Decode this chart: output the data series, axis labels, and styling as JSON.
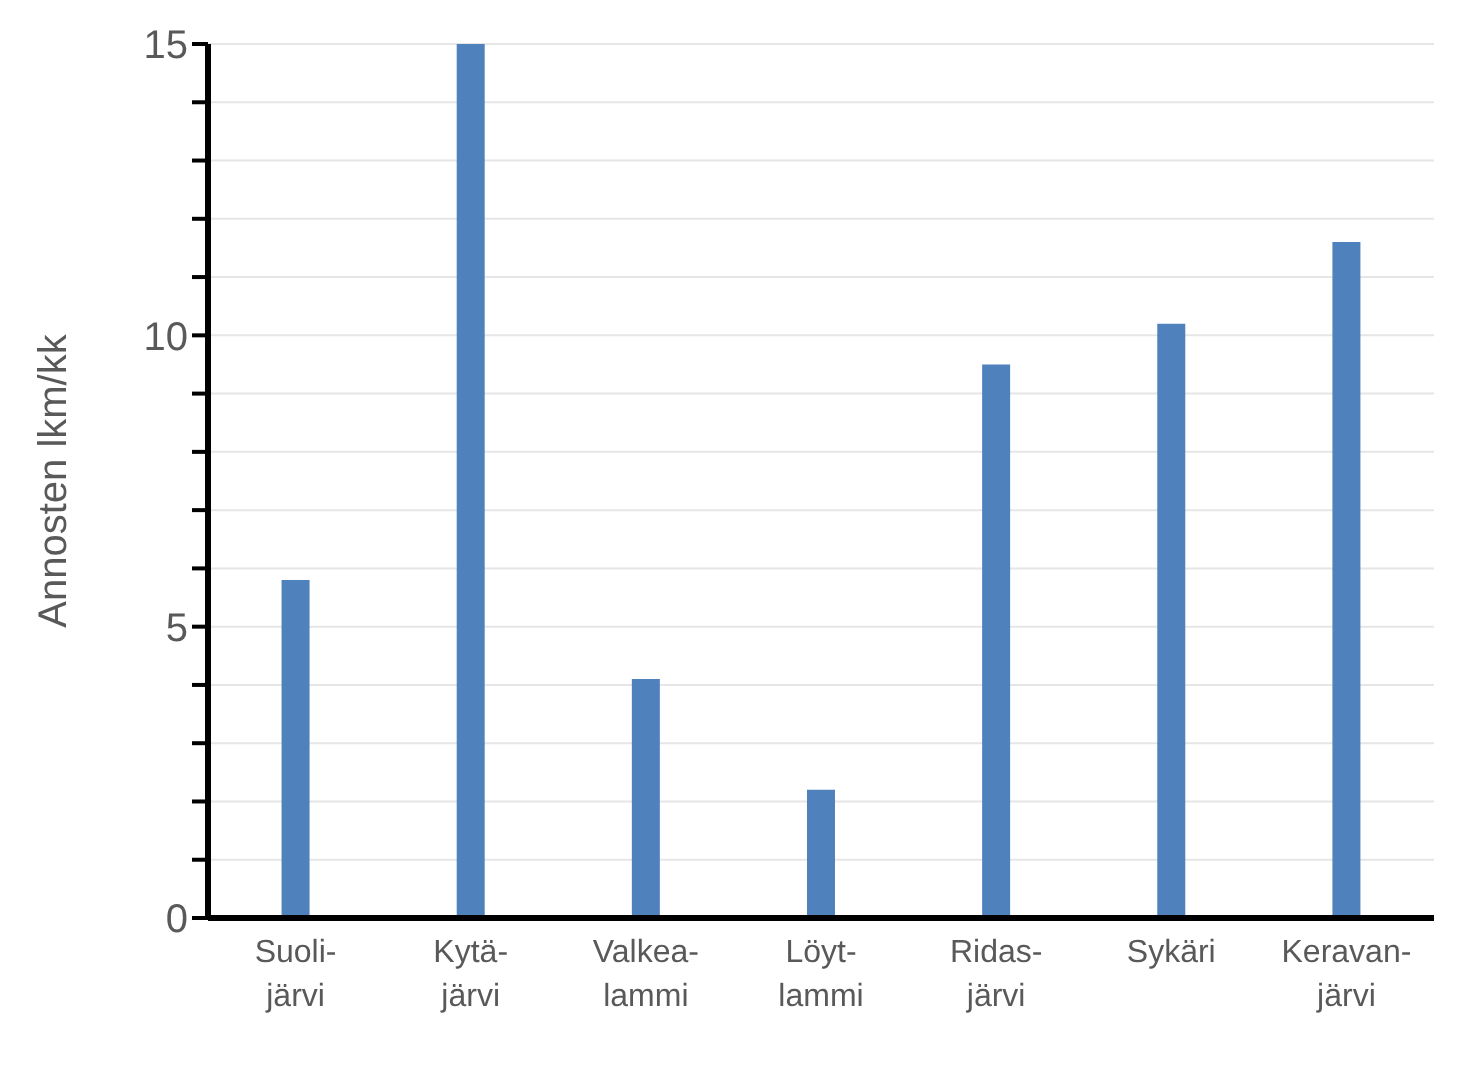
{
  "chart_data": {
    "type": "bar",
    "ylabel": "Annosten lkm/kk",
    "categories": [
      "Suoli-\njärvi",
      "Kytä-\njärvi",
      "Valkea-\nlammi",
      "Löyt-\nlammi",
      "Ridas-\njärvi",
      "Sykäri",
      "Keravan-\njärvi"
    ],
    "values": [
      5.8,
      15.0,
      4.1,
      2.2,
      9.5,
      10.2,
      11.6
    ],
    "color": "#4f81bd",
    "ylim": [
      0,
      15
    ],
    "yticks": [
      0,
      {
        "value": 1,
        "label": null
      },
      {
        "value": 2,
        "label": null
      },
      {
        "value": 3,
        "label": null
      },
      {
        "value": 4,
        "label": null
      },
      5,
      {
        "value": 6,
        "label": null
      },
      {
        "value": 7,
        "label": null
      },
      {
        "value": 8,
        "label": null
      },
      {
        "value": 9,
        "label": null
      },
      10,
      {
        "value": 11,
        "label": null
      },
      {
        "value": 12,
        "label": null
      },
      {
        "value": 13,
        "label": null
      },
      {
        "value": 14,
        "label": null
      },
      15
    ],
    "grid": "y"
  }
}
